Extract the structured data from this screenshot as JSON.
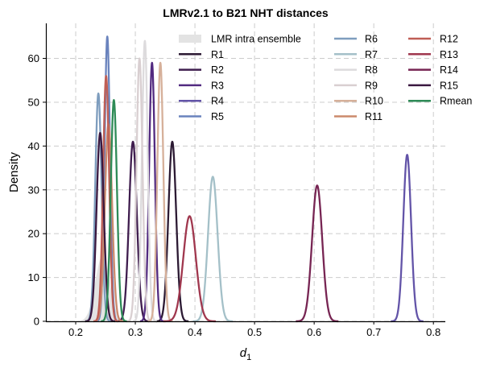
{
  "chart_data": {
    "type": "line",
    "title": "LMRv2.1 to B21 NHT distances",
    "xlabel": "d",
    "xlabel_subscript": "1",
    "ylabel": "Density",
    "xlim": [
      0.15,
      0.82
    ],
    "ylim": [
      0,
      68
    ],
    "xticks": [
      0.2,
      0.3,
      0.4,
      0.5,
      0.6,
      0.7,
      0.8
    ],
    "xtick_labels": [
      "0.2",
      "0.3",
      "0.4",
      "0.5",
      "0.6",
      "0.7",
      "0.8"
    ],
    "yticks": [
      0,
      10,
      20,
      30,
      40,
      50,
      60
    ],
    "ytick_labels": [
      "0",
      "10",
      "20",
      "30",
      "40",
      "50",
      "60"
    ],
    "grid": true,
    "legend_placement": "top-right",
    "legend_columns": 3,
    "ensemble": {
      "name": "LMR intra ensemble",
      "color": "#e3e3e3",
      "center": 0.245,
      "peak": 15,
      "width": 0.012
    },
    "series": [
      {
        "name": "R1",
        "color": "#2c1a33",
        "center": 0.362,
        "peak": 41,
        "width": 0.0065
      },
      {
        "name": "R2",
        "color": "#3f1d4e",
        "center": 0.296,
        "peak": 41,
        "width": 0.0065
      },
      {
        "name": "R3",
        "color": "#522a80",
        "center": 0.328,
        "peak": 59,
        "width": 0.0048
      },
      {
        "name": "R4",
        "color": "#6354a8",
        "center": 0.756,
        "peak": 38,
        "width": 0.0065
      },
      {
        "name": "R5",
        "color": "#6a83bd",
        "center": 0.253,
        "peak": 65,
        "width": 0.0045
      },
      {
        "name": "R6",
        "color": "#7e9dbe",
        "center": 0.238,
        "peak": 52,
        "width": 0.0052
      },
      {
        "name": "R7",
        "color": "#a4c0c8",
        "center": 0.43,
        "peak": 33,
        "width": 0.008
      },
      {
        "name": "R8",
        "color": "#dddbdd",
        "center": 0.316,
        "peak": 64,
        "width": 0.0048
      },
      {
        "name": "R9",
        "color": "#d9cfd1",
        "center": 0.307,
        "peak": 60,
        "width": 0.005
      },
      {
        "name": "R10",
        "color": "#d6b09a",
        "center": 0.342,
        "peak": 59,
        "width": 0.005
      },
      {
        "name": "R11",
        "color": "#cc8a6c",
        "center": 0.255,
        "peak": 45,
        "width": 0.006
      },
      {
        "name": "R12",
        "color": "#bf5e55",
        "center": 0.251,
        "peak": 56,
        "width": 0.005
      },
      {
        "name": "R13",
        "color": "#a0374e",
        "center": 0.391,
        "peak": 24,
        "width": 0.0105
      },
      {
        "name": "R14",
        "color": "#772553",
        "center": 0.605,
        "peak": 31,
        "width": 0.0085
      },
      {
        "name": "R15",
        "color": "#3a1840",
        "center": 0.241,
        "peak": 43,
        "width": 0.006
      },
      {
        "name": "Rmean",
        "color": "#2e8b57",
        "center": 0.264,
        "peak": 50.5,
        "width": 0.0052
      }
    ]
  }
}
